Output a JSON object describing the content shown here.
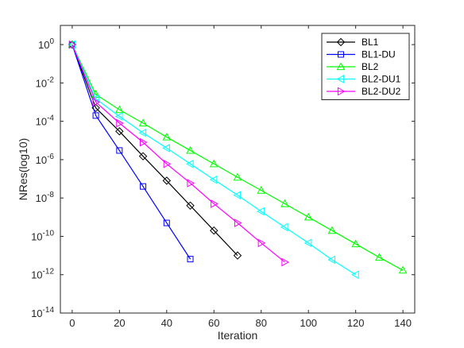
{
  "chart_data": {
    "type": "line",
    "title": "",
    "xlabel": "Iteration",
    "ylabel": "NRes(log10)",
    "xlim": [
      -5,
      145
    ],
    "ylim_log10": [
      -14,
      1
    ],
    "y_scale": "log",
    "x_ticks": [
      0,
      20,
      40,
      60,
      80,
      100,
      120,
      140
    ],
    "y_tick_exponents": [
      0,
      -2,
      -4,
      -6,
      -8,
      -10,
      -12,
      -14
    ],
    "y_tick_base": "10",
    "grid": false,
    "legend_position": "top-right",
    "series": [
      {
        "name": "BL1",
        "color": "#000000",
        "marker": "diamond",
        "x": [
          0,
          10,
          20,
          30,
          40,
          50,
          60,
          70
        ],
        "y": [
          1,
          0.0005,
          3e-05,
          1.5e-06,
          8e-08,
          4e-09,
          2e-10,
          1e-11
        ]
      },
      {
        "name": "BL1-DU",
        "color": "#0000ff",
        "marker": "square",
        "x": [
          0,
          10,
          20,
          30,
          40,
          50
        ],
        "y": [
          1,
          0.0002,
          3e-06,
          4e-08,
          5e-10,
          6.5e-12
        ]
      },
      {
        "name": "BL2",
        "color": "#00ff00",
        "marker": "triangle-up",
        "x": [
          0,
          10,
          20,
          30,
          40,
          50,
          60,
          70,
          80,
          90,
          100,
          110,
          120,
          130,
          140
        ],
        "y": [
          1,
          0.0025,
          0.0004,
          8e-05,
          1.5e-05,
          3e-06,
          6e-07,
          1.2e-07,
          2.5e-08,
          5e-09,
          1e-09,
          2e-10,
          4e-11,
          8e-12,
          1.7e-12
        ]
      },
      {
        "name": "BL2-DU1",
        "color": "#00ffff",
        "marker": "triangle-left",
        "x": [
          0,
          10,
          20,
          30,
          40,
          50,
          60,
          70,
          80,
          90,
          100,
          110,
          120
        ],
        "y": [
          1,
          0.0015,
          0.00018,
          2.5e-05,
          4e-06,
          6e-07,
          9e-08,
          1.4e-08,
          2e-09,
          3e-10,
          4.5e-11,
          6e-12,
          1e-12
        ]
      },
      {
        "name": "BL2-DU2",
        "color": "#ff00ff",
        "marker": "triangle-right",
        "x": [
          0,
          10,
          20,
          30,
          40,
          50,
          60,
          70,
          80,
          90
        ],
        "y": [
          1,
          0.001,
          8e-05,
          8e-06,
          6e-07,
          6e-08,
          5e-09,
          5e-10,
          4.5e-11,
          4.5e-12
        ]
      }
    ]
  }
}
